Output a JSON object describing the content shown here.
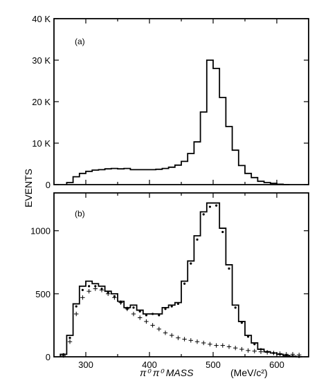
{
  "chart_data": [
    {
      "type": "line",
      "panel_label": "(a)",
      "style": "step-histogram",
      "x_unit": "MeV/c²",
      "xlim": [
        250,
        650
      ],
      "ylim": [
        0,
        40000
      ],
      "y_ticks": [
        0,
        10000,
        20000,
        30000,
        40000
      ],
      "y_tick_labels": [
        "0",
        "10 K",
        "20 K",
        "30 K",
        "40 K"
      ],
      "bin_edges": [
        270,
        280,
        290,
        300,
        310,
        320,
        330,
        340,
        350,
        360,
        370,
        380,
        390,
        400,
        410,
        420,
        430,
        440,
        450,
        460,
        470,
        480,
        490,
        500,
        510,
        520,
        530,
        540,
        550,
        560,
        570,
        580,
        590,
        600,
        610,
        620
      ],
      "series": [
        {
          "values": [
            500,
            1900,
            2700,
            3200,
            3500,
            3600,
            3800,
            3900,
            3800,
            3900,
            3600,
            3600,
            3600,
            3600,
            3700,
            3900,
            4200,
            4700,
            5600,
            7500,
            10300,
            17500,
            30000,
            28000,
            21000,
            14000,
            8300,
            4600,
            2700,
            1700,
            800,
            500,
            300,
            100,
            0
          ]
        }
      ],
      "grid": false
    },
    {
      "type": "line",
      "panel_label": "(b)",
      "style": "step-histogram-with-markers",
      "xlim": [
        250,
        650
      ],
      "ylim": [
        0,
        1300
      ],
      "y_ticks": [
        0,
        500,
        1000
      ],
      "y_tick_labels": [
        "0",
        "500",
        "1000"
      ],
      "x_ticks": [
        300,
        400,
        500,
        600
      ],
      "x_tick_labels": [
        "300",
        "400",
        "500",
        "600"
      ],
      "bin_edges": [
        260,
        270,
        280,
        290,
        300,
        310,
        320,
        330,
        340,
        350,
        360,
        370,
        380,
        390,
        400,
        410,
        420,
        430,
        440,
        450,
        460,
        470,
        480,
        490,
        500,
        510,
        520,
        530,
        540,
        550,
        560,
        570,
        580,
        590,
        600,
        610,
        620,
        630,
        640
      ],
      "series": [
        {
          "marker": "line",
          "values": [
            20,
            170,
            420,
            560,
            600,
            580,
            560,
            520,
            500,
            440,
            390,
            410,
            370,
            340,
            340,
            340,
            390,
            410,
            430,
            600,
            760,
            960,
            1150,
            1220,
            1220,
            1020,
            730,
            410,
            280,
            170,
            110,
            60,
            40,
            30,
            20,
            10,
            5,
            0
          ]
        },
        {
          "marker": "dot",
          "values": [
            20,
            150,
            400,
            530,
            560,
            560,
            540,
            510,
            480,
            430,
            380,
            390,
            360,
            330,
            340,
            330,
            380,
            400,
            420,
            580,
            740,
            930,
            1130,
            1190,
            1200,
            990,
            700,
            390,
            270,
            160,
            100,
            60,
            40,
            30,
            20,
            10,
            5,
            0
          ]
        },
        {
          "marker": "plus",
          "values": [
            10,
            120,
            340,
            470,
            520,
            540,
            530,
            500,
            470,
            430,
            380,
            340,
            310,
            280,
            250,
            220,
            190,
            170,
            150,
            140,
            130,
            120,
            110,
            100,
            90,
            90,
            80,
            70,
            60,
            50,
            45,
            40,
            35,
            30,
            25,
            20,
            20,
            15
          ]
        }
      ],
      "grid": false
    }
  ],
  "axes": {
    "ylabel": "EVENTS",
    "xlabel_particles": "π⁰ π⁰ MASS",
    "xlabel_unit": "(MeV/c²)"
  }
}
